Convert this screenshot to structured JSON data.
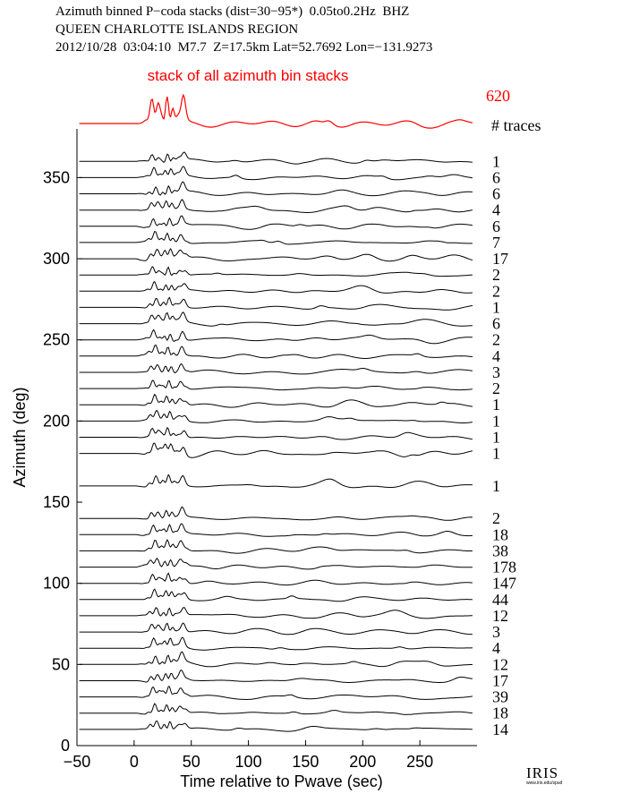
{
  "header": {
    "line1": "Azimuth binned P−coda stacks (dist=30−95*)  0.05to0.2Hz  BHZ",
    "line2": "QUEEN CHARLOTTE ISLANDS REGION",
    "line3": "2012/10/28  03:04:10  M7.7  Z=17.5km Lat=52.7692 Lon=−131.9273"
  },
  "logo": {
    "text": "IRIS",
    "url_text": "www.iris.edu/spud"
  },
  "colors": {
    "stack": "#ff0000",
    "trace": "#000000"
  },
  "chart_data": {
    "type": "line",
    "xlabel": "Time relative to Pwave (sec)",
    "ylabel": "Azimuth (deg)",
    "xlim": [
      -50,
      300
    ],
    "ylim": [
      0,
      380
    ],
    "xticks": [
      -50,
      0,
      50,
      100,
      150,
      200,
      250
    ],
    "yticks": [
      0,
      50,
      100,
      150,
      200,
      250,
      300,
      350
    ],
    "stack": {
      "title": "stack of all azimuth bin stacks",
      "count": "620",
      "count_label": "# traces"
    },
    "traces": [
      {
        "azimuth": 360,
        "count": "1"
      },
      {
        "azimuth": 350,
        "count": "6"
      },
      {
        "azimuth": 340,
        "count": "6"
      },
      {
        "azimuth": 330,
        "count": "4"
      },
      {
        "azimuth": 320,
        "count": "6"
      },
      {
        "azimuth": 310,
        "count": "7"
      },
      {
        "azimuth": 300,
        "count": "17"
      },
      {
        "azimuth": 290,
        "count": "2"
      },
      {
        "azimuth": 280,
        "count": "2"
      },
      {
        "azimuth": 270,
        "count": "1"
      },
      {
        "azimuth": 260,
        "count": "6"
      },
      {
        "azimuth": 250,
        "count": "2"
      },
      {
        "azimuth": 240,
        "count": "4"
      },
      {
        "azimuth": 230,
        "count": "3"
      },
      {
        "azimuth": 220,
        "count": "2"
      },
      {
        "azimuth": 210,
        "count": "1"
      },
      {
        "azimuth": 200,
        "count": "1"
      },
      {
        "azimuth": 190,
        "count": "1"
      },
      {
        "azimuth": 180,
        "count": "1"
      },
      {
        "azimuth": 160,
        "count": "1"
      },
      {
        "azimuth": 140,
        "count": "2"
      },
      {
        "azimuth": 130,
        "count": "18"
      },
      {
        "azimuth": 120,
        "count": "38"
      },
      {
        "azimuth": 110,
        "count": "178"
      },
      {
        "azimuth": 100,
        "count": "147"
      },
      {
        "azimuth": 90,
        "count": "44"
      },
      {
        "azimuth": 80,
        "count": "12"
      },
      {
        "azimuth": 70,
        "count": "3"
      },
      {
        "azimuth": 60,
        "count": "4"
      },
      {
        "azimuth": 50,
        "count": "12"
      },
      {
        "azimuth": 40,
        "count": "17"
      },
      {
        "azimuth": 30,
        "count": "39"
      },
      {
        "azimuth": 20,
        "count": "18"
      },
      {
        "azimuth": 10,
        "count": "14"
      }
    ]
  }
}
